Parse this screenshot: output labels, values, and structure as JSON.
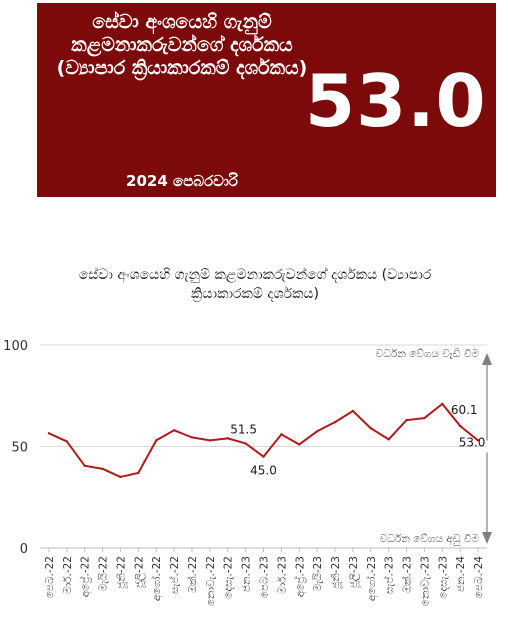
{
  "banner": {
    "title": "සේවා අංශයෙහි ගැනුම් කළමනාකරුවන්ගේ දර්ශකය (ව්‍යාපාර ක්‍රියාකාරකම් දර්ශකය)",
    "date": "2024 පෙබරවාරි",
    "value": "53.0",
    "background": "#7d0a0a"
  },
  "chart_data": {
    "type": "line",
    "title": "සේවා අංශයෙහි ගැනුම් කළමනාකරුවන්ගේ දර්ශකය (ව්‍යාපාර ක්‍රියාකාරකම් දර්ශකය)",
    "categories": [
      "පෙබ.-22",
      "මාර්.-22",
      "අප්‍රේ.-22",
      "මැයි-22",
      "ජූනි-22",
      "ජූලි-22",
      "අගෝ.-22",
      "සැප්.-22",
      "ඔක්.-22",
      "නොවැ.-22",
      "දෙසැ.-22",
      "ජන.-23",
      "පෙබ.-23",
      "මාර්.-23",
      "අප්‍රේ.-23",
      "මැයි-23",
      "ජූනි-23",
      "ජූලි-23",
      "අගෝ.-23",
      "සැප්.-23",
      "ඔක්.-23",
      "නොවැ.-23",
      "දෙසැ.-23",
      "ජන.-24",
      "පෙබ.-24"
    ],
    "series": [
      {
        "values": [
          56.5,
          52.5,
          40.5,
          39.0,
          35.0,
          37.0,
          53.0,
          58.0,
          54.5,
          53.0,
          54.0,
          51.5,
          45.0,
          56.0,
          51.0,
          57.5,
          62.0,
          67.5,
          59.0,
          53.5,
          63.0,
          64.0,
          71.0,
          60.1,
          53.0
        ]
      }
    ],
    "ylim": [
      0,
      100
    ],
    "yticks": [
      0,
      50,
      100
    ],
    "grid": true,
    "line_color": "#b31b1b",
    "data_labels": [
      {
        "index": 11,
        "text": "51.5"
      },
      {
        "index": 12,
        "text": "45.0"
      },
      {
        "index": 23,
        "text": "60.1"
      },
      {
        "index": 24,
        "text": "53.0"
      }
    ],
    "annotations": {
      "upper": "වර්ධන වේගය වැඩි වීම",
      "lower": "වර්ධන වේගය අඩු වීම"
    }
  }
}
